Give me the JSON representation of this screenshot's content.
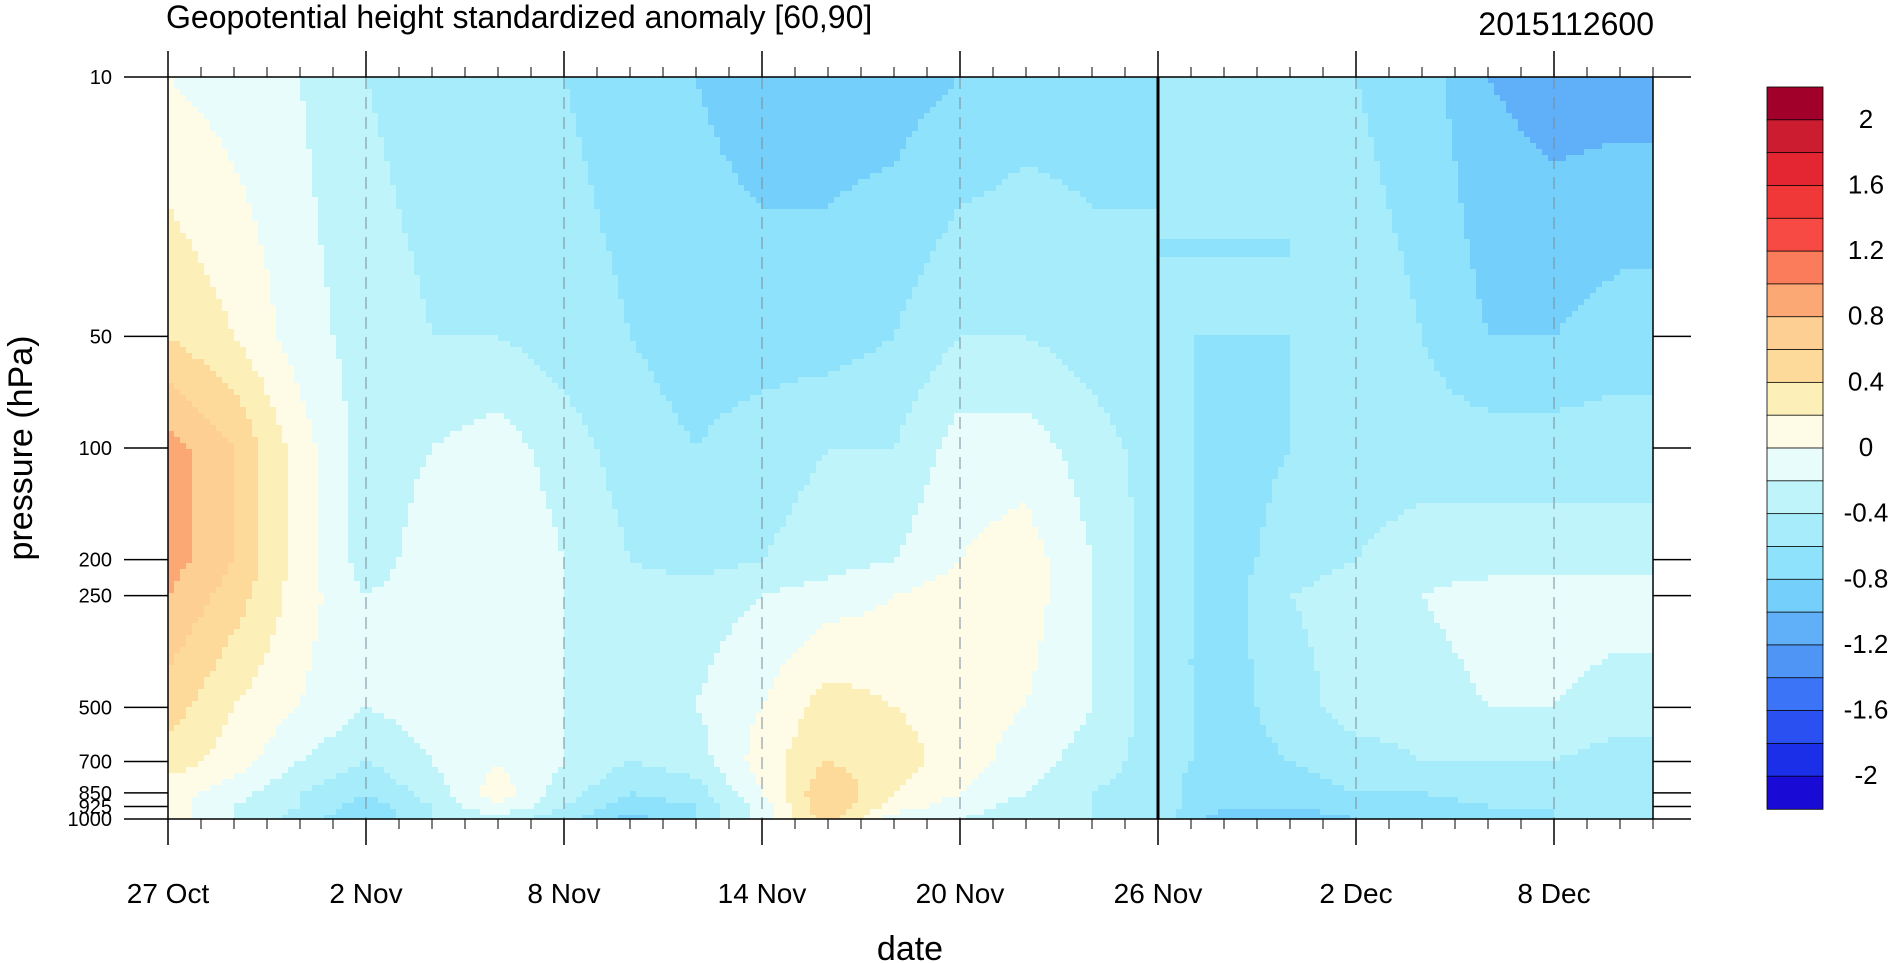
{
  "chart_data": {
    "type": "heatmap",
    "title": "Geopotential height standardized anomaly [60,90]",
    "title_right": "2015112600",
    "xlabel": "date",
    "ylabel": "pressure (hPa)",
    "x_ticks": [
      "27 Oct",
      "2 Nov",
      "8 Nov",
      "14 Nov",
      "20 Nov",
      "26 Nov",
      "2 Dec",
      "8 Dec"
    ],
    "y_ticks": [
      "10",
      "50",
      "100",
      "200",
      "250",
      "500",
      "700",
      "850",
      "925",
      "1000"
    ],
    "y_scale": "log",
    "ylim": [
      1000,
      10
    ],
    "xlim": [
      "2015-10-27",
      "2015-12-11"
    ],
    "highlight_date": "2015-11-26",
    "colorbar": {
      "labels": [
        "2",
        "1.6",
        "1.2",
        "0.8",
        "0.4",
        "0",
        "-0.4",
        "-0.8",
        "-1.2",
        "-1.6",
        "-2"
      ],
      "levels": [
        -2.2,
        -2.0,
        -1.8,
        -1.6,
        -1.4,
        -1.2,
        -1.0,
        -0.8,
        -0.6,
        -0.4,
        -0.2,
        0.0,
        0.2,
        0.4,
        0.6,
        0.8,
        1.0,
        1.2,
        1.4,
        1.6,
        1.8,
        2.0,
        2.2
      ],
      "colors": [
        "#1a0ad6",
        "#1b2ee8",
        "#2b50f2",
        "#3b74f6",
        "#4f95f6",
        "#5fb0f8",
        "#74d0fb",
        "#8fe2fb",
        "#a6ecfb",
        "#bff4fb",
        "#e8fcfc",
        "#fefce6",
        "#fcf0b8",
        "#fdd99a",
        "#fdcf92",
        "#fca874",
        "#fb7c5a",
        "#f84a44",
        "#f03838",
        "#e42632",
        "#cc1c30",
        "#a0002a"
      ]
    },
    "dates": [
      "10-27",
      "10-29",
      "10-31",
      "11-02",
      "11-04",
      "11-06",
      "11-08",
      "11-10",
      "11-12",
      "11-14",
      "11-16",
      "11-18",
      "11-20",
      "11-22",
      "11-24",
      "11-26",
      "11-28",
      "11-30",
      "12-02",
      "12-04",
      "12-06",
      "12-08",
      "12-10"
    ],
    "levels_hPa": [
      1000,
      925,
      850,
      700,
      500,
      250,
      200,
      100,
      50,
      10
    ],
    "values": [
      [
        0.1,
        -0.2,
        -0.5,
        -0.8,
        -0.4,
        -0.3,
        -0.5,
        -0.9,
        -0.6,
        -0.1,
        0.5,
        -0.1,
        -0.2,
        -0.3,
        -0.4,
        -0.5,
        -0.9,
        -0.9,
        -0.8,
        -0.8,
        -0.7,
        -0.6,
        -0.6
      ],
      [
        0.1,
        -0.2,
        -0.4,
        -0.7,
        -0.4,
        0.0,
        -0.4,
        -0.7,
        -0.6,
        -0.1,
        0.6,
        0.1,
        -0.1,
        -0.3,
        -0.4,
        -0.5,
        -0.8,
        -0.8,
        -0.7,
        -0.7,
        -0.6,
        -0.6,
        -0.6
      ],
      [
        0.1,
        -0.1,
        -0.4,
        -0.6,
        -0.3,
        0.1,
        -0.3,
        -0.6,
        -0.5,
        0.0,
        0.6,
        0.2,
        0.0,
        -0.2,
        -0.4,
        -0.5,
        -0.8,
        -0.7,
        -0.6,
        -0.6,
        -0.5,
        -0.5,
        -0.6
      ],
      [
        0.3,
        0.1,
        -0.2,
        -0.4,
        -0.2,
        0.0,
        -0.2,
        -0.4,
        -0.3,
        0.1,
        0.4,
        0.3,
        0.1,
        -0.1,
        -0.3,
        -0.5,
        -0.7,
        -0.6,
        -0.5,
        -0.4,
        -0.4,
        -0.4,
        -0.5
      ],
      [
        0.5,
        0.2,
        0.0,
        -0.2,
        -0.1,
        -0.1,
        -0.2,
        -0.3,
        -0.2,
        0.0,
        0.3,
        0.2,
        0.1,
        0.0,
        -0.2,
        -0.5,
        -0.7,
        -0.5,
        -0.3,
        -0.3,
        -0.2,
        -0.2,
        -0.3
      ],
      [
        0.8,
        0.5,
        0.1,
        -0.2,
        -0.1,
        0.0,
        -0.2,
        -0.3,
        -0.3,
        -0.2,
        -0.1,
        0.0,
        0.1,
        0.1,
        -0.2,
        -0.5,
        -0.7,
        -0.4,
        -0.3,
        -0.2,
        -0.1,
        -0.1,
        -0.1
      ],
      [
        0.9,
        0.6,
        0.1,
        -0.3,
        -0.1,
        0.0,
        -0.2,
        -0.4,
        -0.5,
        -0.4,
        -0.3,
        -0.2,
        0.0,
        0.1,
        -0.2,
        -0.5,
        -0.7,
        -0.5,
        -0.4,
        -0.3,
        -0.3,
        -0.3,
        -0.3
      ],
      [
        0.9,
        0.6,
        0.1,
        -0.3,
        -0.2,
        -0.1,
        -0.3,
        -0.5,
        -0.6,
        -0.5,
        -0.4,
        -0.4,
        -0.1,
        -0.1,
        -0.3,
        -0.5,
        -0.7,
        -0.6,
        -0.5,
        -0.5,
        -0.5,
        -0.5,
        -0.5
      ],
      [
        0.4,
        0.2,
        -0.1,
        -0.3,
        -0.4,
        -0.4,
        -0.5,
        -0.6,
        -0.7,
        -0.7,
        -0.7,
        -0.6,
        -0.4,
        -0.4,
        -0.5,
        -0.6,
        -0.6,
        -0.6,
        -0.5,
        -0.6,
        -0.8,
        -0.8,
        -0.7
      ],
      [
        0.0,
        -0.1,
        -0.2,
        -0.4,
        -0.5,
        -0.6,
        -0.6,
        -0.7,
        -0.8,
        -0.9,
        -0.9,
        -0.9,
        -0.8,
        -0.7,
        -0.7,
        -0.6,
        -0.6,
        -0.6,
        -0.6,
        -0.7,
        -1.0,
        -1.1,
        -1.1
      ]
    ]
  }
}
